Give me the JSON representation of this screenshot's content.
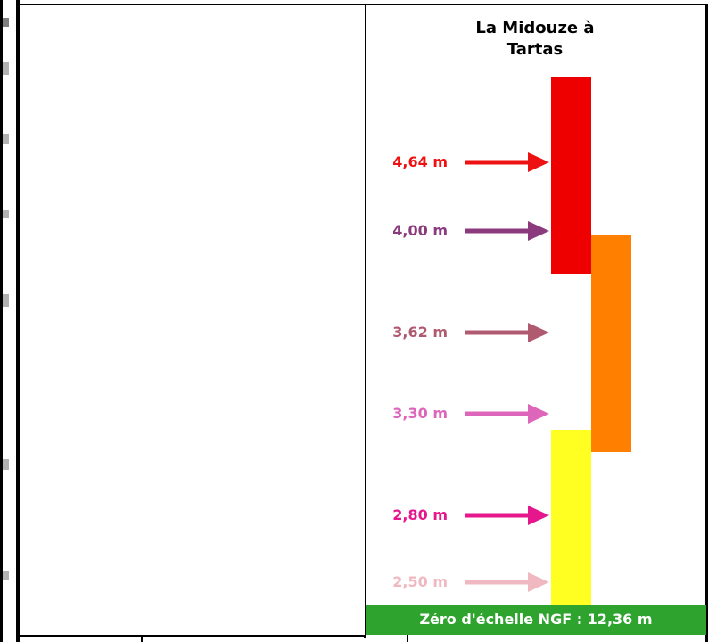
{
  "station": {
    "title": "La Midouze à\nTartas"
  },
  "levels": [
    {
      "label": "4,64 m",
      "color": "#ee1111"
    },
    {
      "label": "4,00 m",
      "color": "#8b3a7e"
    },
    {
      "label": "3,62 m",
      "color": "#b05a70"
    },
    {
      "label": "3,30 m",
      "color": "#dd66bb"
    },
    {
      "label": "2,80 m",
      "color": "#e6168c"
    },
    {
      "label": "2,50 m",
      "color": "#f0b8c0"
    }
  ],
  "bars": {
    "red": {
      "color": "#ee0000"
    },
    "orange": {
      "color": "#ff7f00"
    },
    "yellow": {
      "color": "#ffff22"
    }
  },
  "footer": {
    "text": "Zéro d'échelle NGF : 12,36 m",
    "color": "#2ea32e"
  }
}
